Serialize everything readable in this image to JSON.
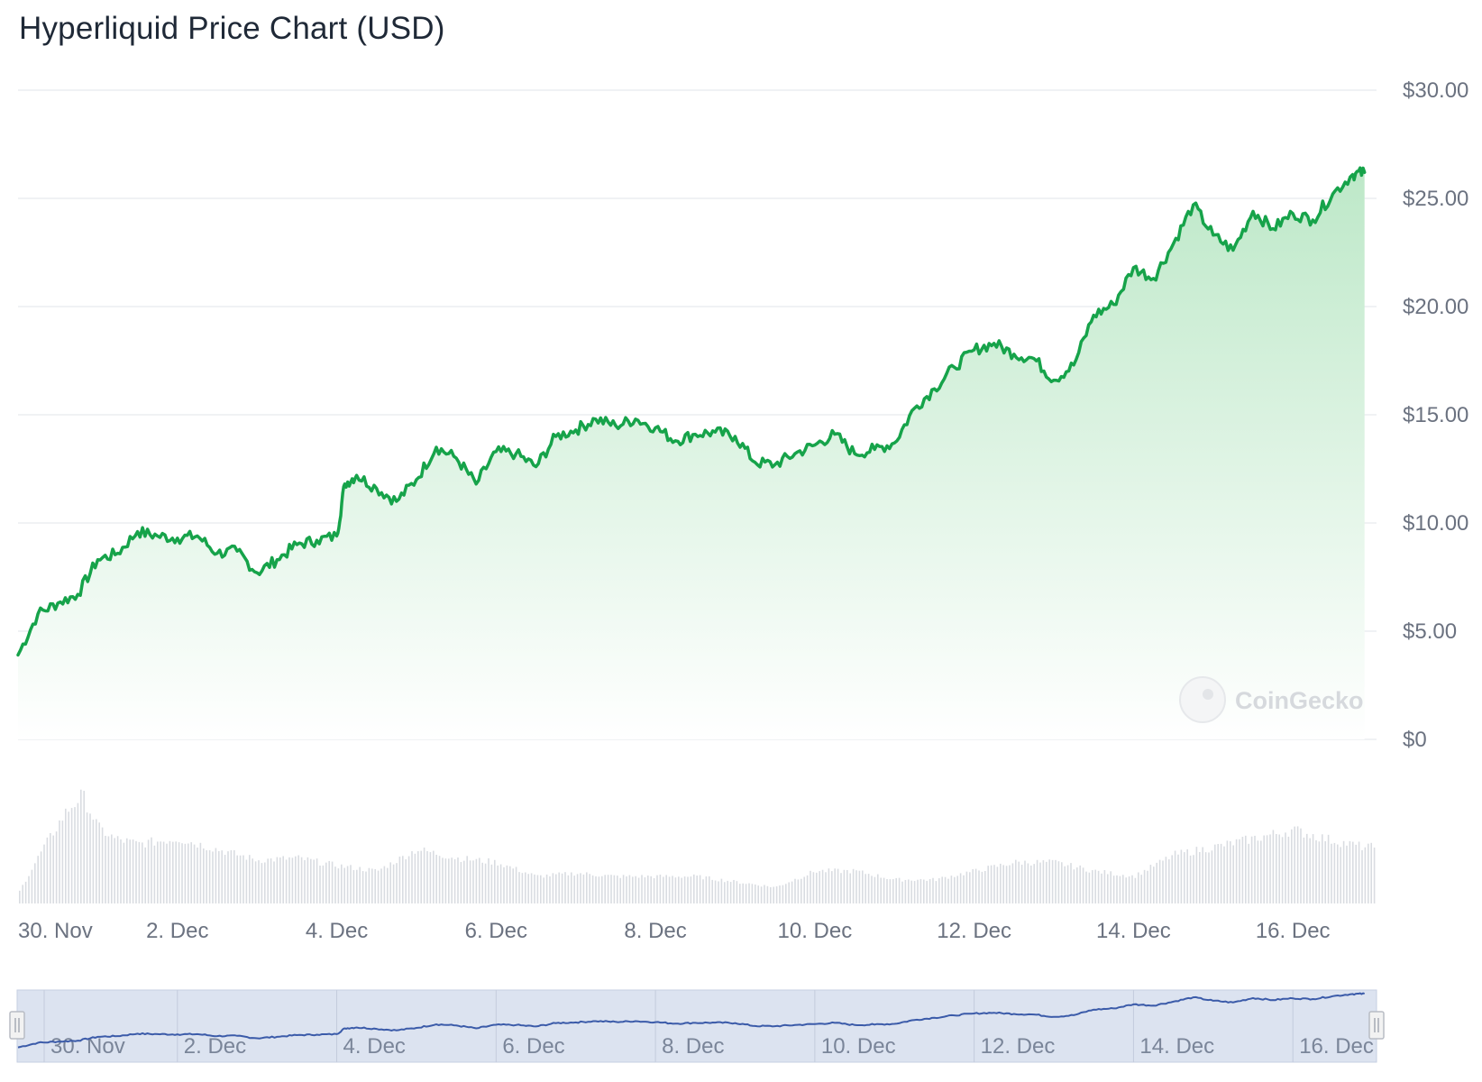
{
  "title": "Hyperliquid Price Chart (USD)",
  "watermark": "CoinGecko",
  "colors": {
    "line": "#16a34a",
    "area_top": "#bde8c8",
    "area_bottom": "#ffffff",
    "grid": "#e8eaed",
    "volume": "#d9dce1",
    "navigator_bg": "#dce3f0",
    "navigator_line": "#3b5ba9"
  },
  "chart_data": {
    "type": "line",
    "title": "Hyperliquid Price Chart (USD)",
    "series": [
      {
        "name": "Price (USD)",
        "x": [
          0.0,
          0.25,
          0.5,
          0.75,
          1.0,
          1.25,
          1.5,
          1.75,
          2.0,
          2.25,
          2.5,
          2.75,
          3.0,
          3.25,
          3.5,
          3.75,
          4.0,
          4.1,
          4.25,
          4.5,
          4.75,
          5.0,
          5.25,
          5.5,
          5.75,
          6.0,
          6.25,
          6.5,
          6.75,
          7.0,
          7.25,
          7.5,
          7.75,
          8.0,
          8.25,
          8.5,
          8.75,
          9.0,
          9.25,
          9.5,
          9.75,
          10.0,
          10.25,
          10.5,
          10.75,
          11.0,
          11.25,
          11.5,
          11.75,
          12.0,
          12.25,
          12.5,
          12.75,
          13.0,
          13.25,
          13.5,
          13.75,
          14.0,
          14.25,
          14.5,
          14.75,
          15.0,
          15.25,
          15.5,
          15.75,
          16.0,
          16.25,
          16.5,
          16.75,
          16.9
        ],
        "values": [
          3.9,
          5.8,
          6.3,
          6.7,
          8.3,
          8.6,
          9.6,
          9.4,
          9.3,
          9.4,
          8.6,
          8.7,
          7.7,
          8.3,
          9.0,
          9.2,
          9.4,
          11.8,
          12.2,
          11.6,
          11.0,
          12.0,
          13.5,
          13.0,
          11.8,
          13.3,
          13.2,
          12.6,
          14.0,
          14.3,
          14.8,
          14.5,
          14.8,
          14.4,
          13.8,
          14.1,
          14.2,
          14.0,
          12.8,
          12.7,
          13.2,
          13.6,
          14.1,
          13.2,
          13.4,
          13.7,
          15.3,
          16.2,
          17.2,
          18.0,
          18.3,
          17.8,
          17.6,
          16.6,
          17.3,
          19.6,
          20.1,
          21.8,
          21.3,
          22.9,
          24.7,
          23.3,
          22.6,
          24.4,
          23.6,
          24.3,
          24.0,
          25.2,
          26.1,
          26.2
        ]
      }
    ],
    "x_unit": "days since 30 Nov",
    "xlim": [
      0,
      17.05
    ],
    "ylim": [
      0,
      30
    ],
    "y_ticks": [
      "$0",
      "$5.00",
      "$10.00",
      "$15.00",
      "$20.00",
      "$25.00",
      "$30.00"
    ],
    "y_tick_values": [
      0,
      5,
      10,
      15,
      20,
      25,
      30
    ],
    "x_ticks": [
      "30. Nov",
      "2. Dec",
      "4. Dec",
      "6. Dec",
      "8. Dec",
      "10. Dec",
      "12. Dec",
      "14. Dec",
      "16. Dec"
    ],
    "x_tick_values": [
      0,
      2,
      4,
      6,
      8,
      10,
      12,
      14,
      16
    ],
    "volume": {
      "x": [
        0.0,
        0.3,
        0.6,
        0.8,
        1.0,
        1.2,
        1.5,
        2.0,
        2.5,
        3.0,
        3.5,
        4.0,
        4.5,
        5.0,
        5.5,
        6.0,
        6.5,
        7.0,
        7.5,
        8.0,
        8.5,
        9.0,
        9.5,
        10.0,
        10.5,
        11.0,
        11.5,
        12.0,
        12.5,
        13.0,
        13.5,
        14.0,
        14.5,
        15.0,
        15.5,
        16.0,
        16.5,
        16.9
      ],
      "values": [
        0.1,
        0.5,
        0.85,
        1.0,
        0.7,
        0.6,
        0.55,
        0.6,
        0.5,
        0.4,
        0.42,
        0.35,
        0.3,
        0.5,
        0.42,
        0.38,
        0.25,
        0.28,
        0.25,
        0.25,
        0.25,
        0.2,
        0.15,
        0.3,
        0.3,
        0.22,
        0.22,
        0.3,
        0.38,
        0.38,
        0.3,
        0.25,
        0.45,
        0.52,
        0.6,
        0.68,
        0.58,
        0.52
      ]
    },
    "navigator": {
      "x_ticks": [
        "30. Nov",
        "2. Dec",
        "4. Dec",
        "6. Dec",
        "8. Dec",
        "10. Dec",
        "12. Dec",
        "14. Dec",
        "16. Dec"
      ]
    }
  }
}
